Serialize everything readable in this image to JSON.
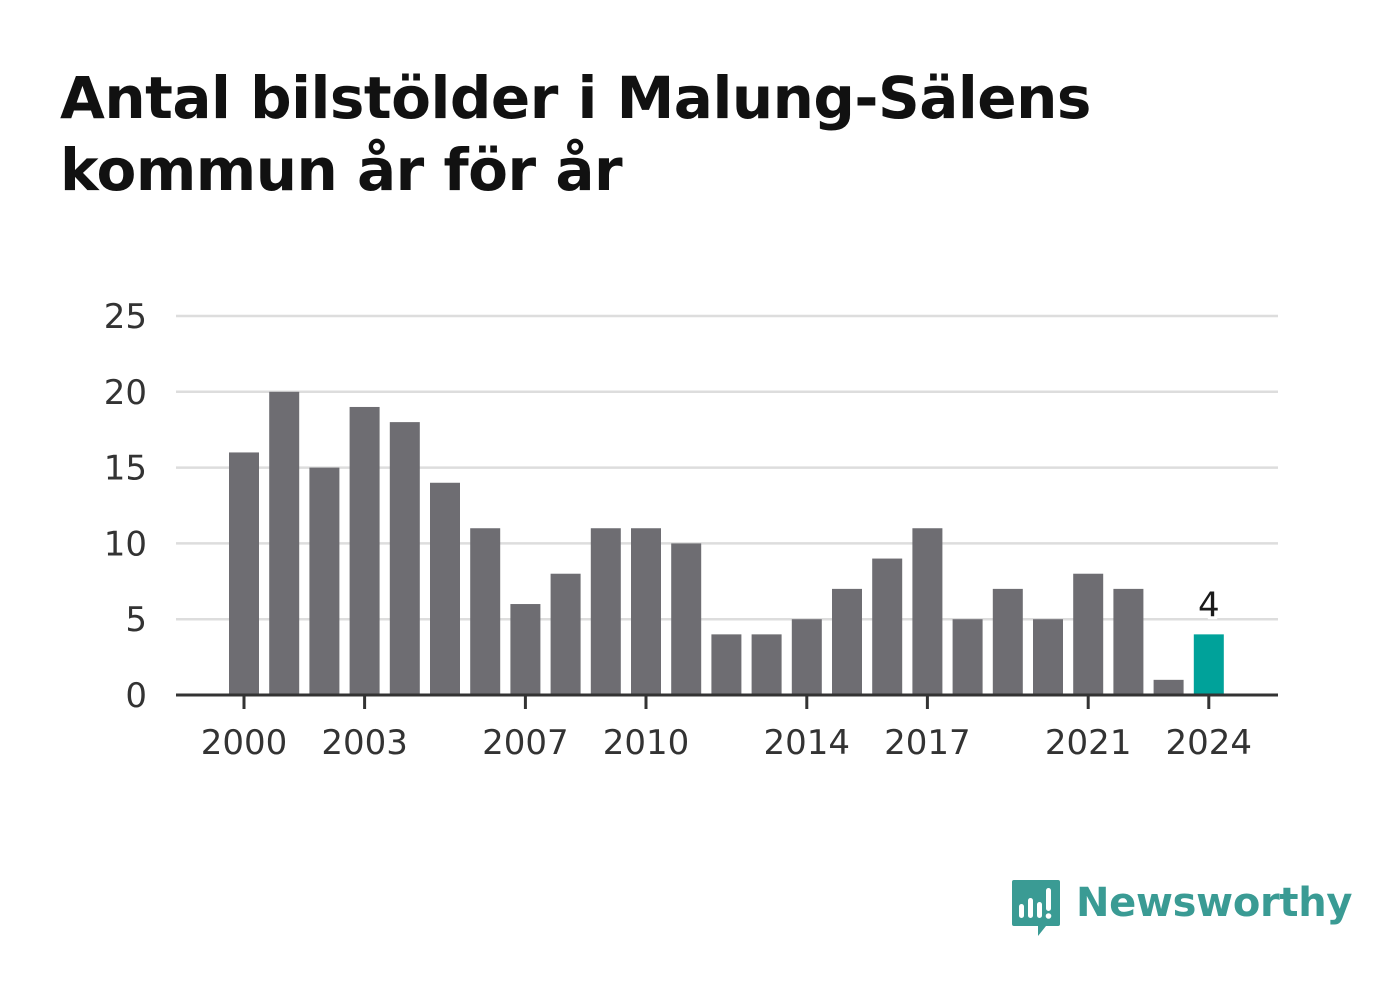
{
  "chart_data": {
    "type": "bar",
    "title": "Antal bilstölder i Malung-Sälens kommun år för år",
    "xlabel": "",
    "ylabel": "",
    "categories": [
      "2000",
      "2001",
      "2002",
      "2003",
      "2004",
      "2005",
      "2006",
      "2007",
      "2008",
      "2009",
      "2010",
      "2011",
      "2012",
      "2013",
      "2014",
      "2015",
      "2016",
      "2017",
      "2018",
      "2019",
      "2020",
      "2021",
      "2022",
      "2023",
      "2024"
    ],
    "values": [
      16,
      20,
      15,
      19,
      18,
      14,
      11,
      6,
      8,
      11,
      11,
      10,
      4,
      4,
      5,
      7,
      9,
      11,
      5,
      7,
      5,
      8,
      7,
      1,
      4
    ],
    "ylim": [
      0,
      25
    ],
    "yticks": [
      "0",
      "5",
      "10",
      "15",
      "20",
      "25"
    ],
    "xtick_labels": [
      "2000",
      "2003",
      "2007",
      "2010",
      "2014",
      "2017",
      "2021",
      "2024"
    ],
    "highlight": {
      "category": "2024",
      "value_label": "4"
    },
    "grid": "horizontal",
    "colors": {
      "bar": "#6e6d72",
      "highlight": "#00a29a",
      "grid": "#dddddd",
      "axis": "#333333"
    }
  },
  "brand": {
    "name": "Newsworthy",
    "icon": "newsworthy-logo-icon",
    "color": "#3a9b94"
  }
}
